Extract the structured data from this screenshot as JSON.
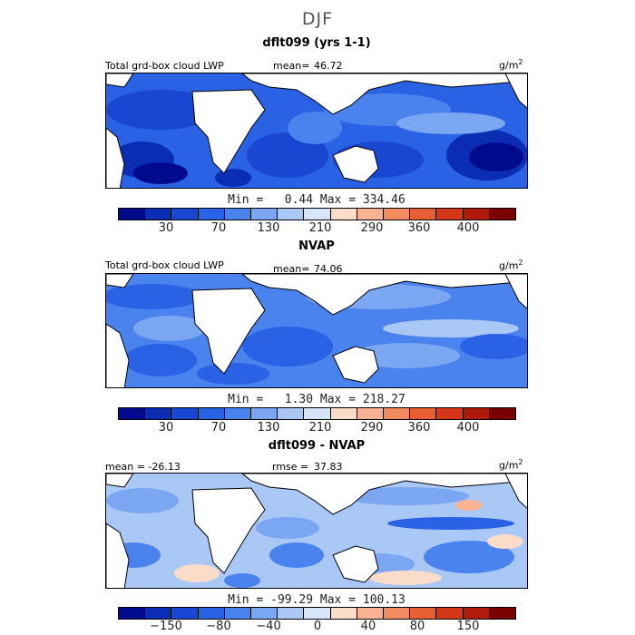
{
  "season": "DJF",
  "unit_base": "g/m",
  "unit_exp": "2",
  "panels": [
    {
      "title": "dflt099 (yrs 1-1)",
      "left_label": "Total grd-box cloud LWP",
      "stat_label": "mean=",
      "stat_value": "46.72",
      "minmax": "Min =   0.44 Max = 334.46"
    },
    {
      "title": "NVAP",
      "left_label": "Total grd-box cloud LWP",
      "stat_label": "mean=",
      "stat_value": "74.06",
      "minmax": "Min =   1.30 Max = 218.27"
    },
    {
      "title": "dflt099 - NVAP",
      "left_label": "mean = -26.13",
      "stat_label": "rmse =",
      "stat_value": "37.83",
      "minmax": "Min = -99.29 Max = 100.13"
    }
  ],
  "colorbars": {
    "abs_ticks": [
      "30",
      "70",
      "130",
      "210",
      "290",
      "360",
      "400"
    ],
    "diff_ticks": [
      "−150",
      "−80",
      "−40",
      "0",
      "40",
      "80",
      "150"
    ],
    "colors": [
      "#000a8c",
      "#0a2db4",
      "#1947d2",
      "#2a62e6",
      "#4a82ee",
      "#7aa6f2",
      "#aac8f6",
      "#d6e6fa",
      "#fbdcc8",
      "#f8b492",
      "#f28a62",
      "#e85f36",
      "#d43718",
      "#b01a08",
      "#7a0000"
    ]
  },
  "chart_data": [
    {
      "type": "heatmap",
      "title": "dflt099 (yrs 1-1)",
      "variable": "Total grd-box cloud LWP",
      "units": "g/m2",
      "mean": 46.72,
      "min": 0.44,
      "max": 334.46,
      "colorbar_ticks": [
        30,
        70,
        130,
        210,
        290,
        360,
        400
      ]
    },
    {
      "type": "heatmap",
      "title": "NVAP",
      "variable": "Total grd-box cloud LWP",
      "units": "g/m2",
      "mean": 74.06,
      "min": 1.3,
      "max": 218.27,
      "colorbar_ticks": [
        30,
        70,
        130,
        210,
        290,
        360,
        400
      ]
    },
    {
      "type": "heatmap",
      "title": "dflt099 - NVAP",
      "units": "g/m2",
      "mean": -26.13,
      "rmse": 37.83,
      "min": -99.29,
      "max": 100.13,
      "colorbar_ticks": [
        -150,
        -80,
        -40,
        0,
        40,
        80,
        150
      ]
    }
  ]
}
